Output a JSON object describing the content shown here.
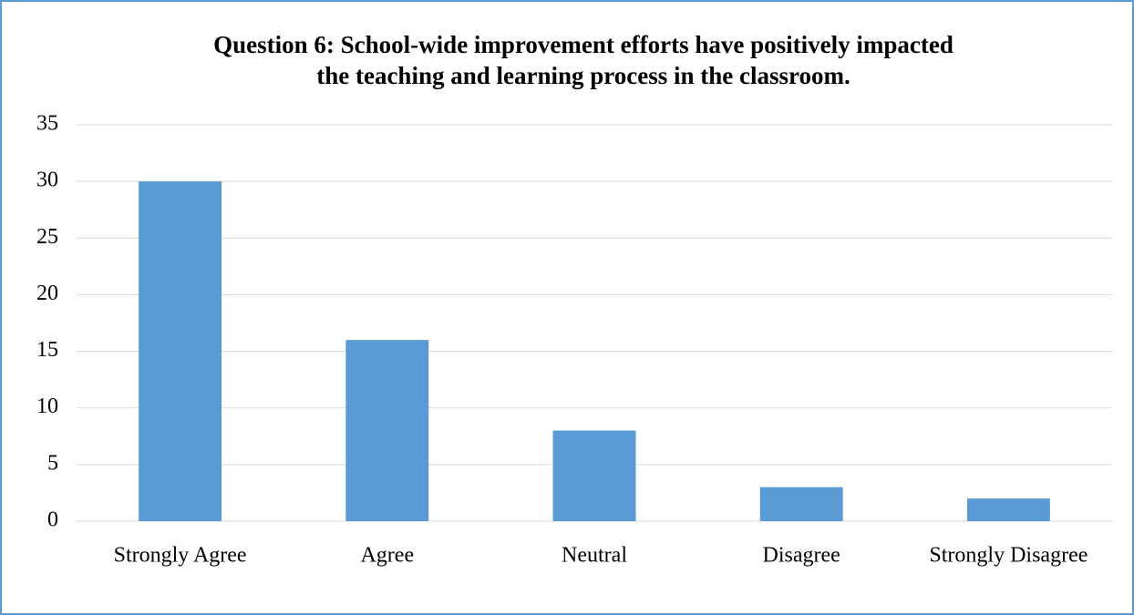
{
  "chart_data": {
    "type": "bar",
    "title": [
      "Question 6: School-wide improvement efforts have positively impacted",
      "the teaching and learning process in the classroom."
    ],
    "categories": [
      "Strongly Agree",
      "Agree",
      "Neutral",
      "Disagree",
      "Strongly Disagree"
    ],
    "values": [
      30,
      16,
      8,
      3,
      2
    ],
    "color": "#5b9bd5",
    "ylim": [
      0,
      35
    ],
    "yticks": [
      0,
      5,
      10,
      15,
      20,
      25,
      30,
      35
    ],
    "grid": true
  }
}
